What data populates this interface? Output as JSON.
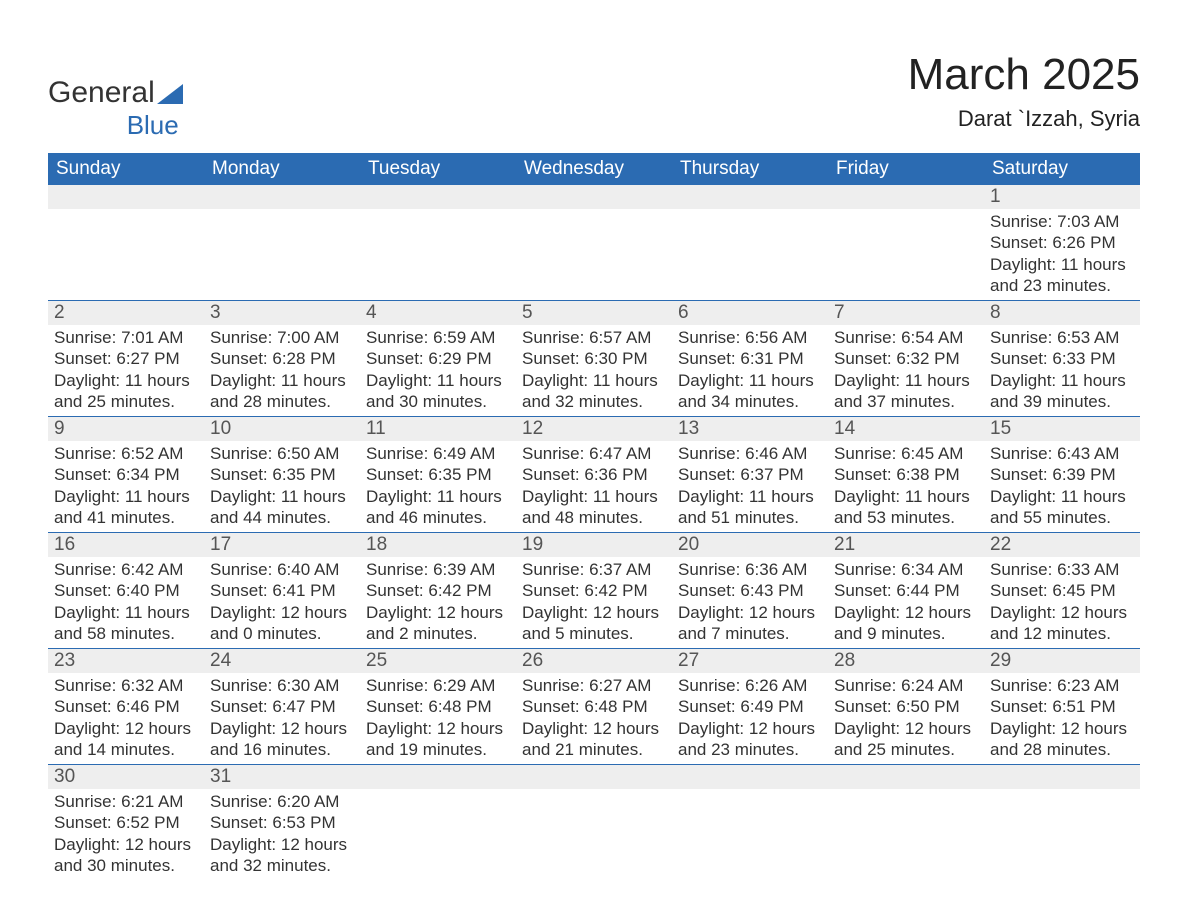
{
  "logo": {
    "word1": "General",
    "word2": "Blue"
  },
  "title": "March 2025",
  "location": "Darat `Izzah, Syria",
  "colors": {
    "header_bg": "#2b6bb2",
    "header_fg": "#ffffff",
    "daynum_bg": "#eeeeee",
    "daynum_fg": "#555555",
    "text": "#333333",
    "rule": "#2b6bb2"
  },
  "day_headers": [
    "Sunday",
    "Monday",
    "Tuesday",
    "Wednesday",
    "Thursday",
    "Friday",
    "Saturday"
  ],
  "weeks": [
    [
      {
        "n": "",
        "lines": [
          "",
          "",
          "",
          ""
        ]
      },
      {
        "n": "",
        "lines": [
          "",
          "",
          "",
          ""
        ]
      },
      {
        "n": "",
        "lines": [
          "",
          "",
          "",
          ""
        ]
      },
      {
        "n": "",
        "lines": [
          "",
          "",
          "",
          ""
        ]
      },
      {
        "n": "",
        "lines": [
          "",
          "",
          "",
          ""
        ]
      },
      {
        "n": "",
        "lines": [
          "",
          "",
          "",
          ""
        ]
      },
      {
        "n": "1",
        "lines": [
          "Sunrise: 7:03 AM",
          "Sunset: 6:26 PM",
          "Daylight: 11 hours",
          "and 23 minutes."
        ]
      }
    ],
    [
      {
        "n": "2",
        "lines": [
          "Sunrise: 7:01 AM",
          "Sunset: 6:27 PM",
          "Daylight: 11 hours",
          "and 25 minutes."
        ]
      },
      {
        "n": "3",
        "lines": [
          "Sunrise: 7:00 AM",
          "Sunset: 6:28 PM",
          "Daylight: 11 hours",
          "and 28 minutes."
        ]
      },
      {
        "n": "4",
        "lines": [
          "Sunrise: 6:59 AM",
          "Sunset: 6:29 PM",
          "Daylight: 11 hours",
          "and 30 minutes."
        ]
      },
      {
        "n": "5",
        "lines": [
          "Sunrise: 6:57 AM",
          "Sunset: 6:30 PM",
          "Daylight: 11 hours",
          "and 32 minutes."
        ]
      },
      {
        "n": "6",
        "lines": [
          "Sunrise: 6:56 AM",
          "Sunset: 6:31 PM",
          "Daylight: 11 hours",
          "and 34 minutes."
        ]
      },
      {
        "n": "7",
        "lines": [
          "Sunrise: 6:54 AM",
          "Sunset: 6:32 PM",
          "Daylight: 11 hours",
          "and 37 minutes."
        ]
      },
      {
        "n": "8",
        "lines": [
          "Sunrise: 6:53 AM",
          "Sunset: 6:33 PM",
          "Daylight: 11 hours",
          "and 39 minutes."
        ]
      }
    ],
    [
      {
        "n": "9",
        "lines": [
          "Sunrise: 6:52 AM",
          "Sunset: 6:34 PM",
          "Daylight: 11 hours",
          "and 41 minutes."
        ]
      },
      {
        "n": "10",
        "lines": [
          "Sunrise: 6:50 AM",
          "Sunset: 6:35 PM",
          "Daylight: 11 hours",
          "and 44 minutes."
        ]
      },
      {
        "n": "11",
        "lines": [
          "Sunrise: 6:49 AM",
          "Sunset: 6:35 PM",
          "Daylight: 11 hours",
          "and 46 minutes."
        ]
      },
      {
        "n": "12",
        "lines": [
          "Sunrise: 6:47 AM",
          "Sunset: 6:36 PM",
          "Daylight: 11 hours",
          "and 48 minutes."
        ]
      },
      {
        "n": "13",
        "lines": [
          "Sunrise: 6:46 AM",
          "Sunset: 6:37 PM",
          "Daylight: 11 hours",
          "and 51 minutes."
        ]
      },
      {
        "n": "14",
        "lines": [
          "Sunrise: 6:45 AM",
          "Sunset: 6:38 PM",
          "Daylight: 11 hours",
          "and 53 minutes."
        ]
      },
      {
        "n": "15",
        "lines": [
          "Sunrise: 6:43 AM",
          "Sunset: 6:39 PM",
          "Daylight: 11 hours",
          "and 55 minutes."
        ]
      }
    ],
    [
      {
        "n": "16",
        "lines": [
          "Sunrise: 6:42 AM",
          "Sunset: 6:40 PM",
          "Daylight: 11 hours",
          "and 58 minutes."
        ]
      },
      {
        "n": "17",
        "lines": [
          "Sunrise: 6:40 AM",
          "Sunset: 6:41 PM",
          "Daylight: 12 hours",
          "and 0 minutes."
        ]
      },
      {
        "n": "18",
        "lines": [
          "Sunrise: 6:39 AM",
          "Sunset: 6:42 PM",
          "Daylight: 12 hours",
          "and 2 minutes."
        ]
      },
      {
        "n": "19",
        "lines": [
          "Sunrise: 6:37 AM",
          "Sunset: 6:42 PM",
          "Daylight: 12 hours",
          "and 5 minutes."
        ]
      },
      {
        "n": "20",
        "lines": [
          "Sunrise: 6:36 AM",
          "Sunset: 6:43 PM",
          "Daylight: 12 hours",
          "and 7 minutes."
        ]
      },
      {
        "n": "21",
        "lines": [
          "Sunrise: 6:34 AM",
          "Sunset: 6:44 PM",
          "Daylight: 12 hours",
          "and 9 minutes."
        ]
      },
      {
        "n": "22",
        "lines": [
          "Sunrise: 6:33 AM",
          "Sunset: 6:45 PM",
          "Daylight: 12 hours",
          "and 12 minutes."
        ]
      }
    ],
    [
      {
        "n": "23",
        "lines": [
          "Sunrise: 6:32 AM",
          "Sunset: 6:46 PM",
          "Daylight: 12 hours",
          "and 14 minutes."
        ]
      },
      {
        "n": "24",
        "lines": [
          "Sunrise: 6:30 AM",
          "Sunset: 6:47 PM",
          "Daylight: 12 hours",
          "and 16 minutes."
        ]
      },
      {
        "n": "25",
        "lines": [
          "Sunrise: 6:29 AM",
          "Sunset: 6:48 PM",
          "Daylight: 12 hours",
          "and 19 minutes."
        ]
      },
      {
        "n": "26",
        "lines": [
          "Sunrise: 6:27 AM",
          "Sunset: 6:48 PM",
          "Daylight: 12 hours",
          "and 21 minutes."
        ]
      },
      {
        "n": "27",
        "lines": [
          "Sunrise: 6:26 AM",
          "Sunset: 6:49 PM",
          "Daylight: 12 hours",
          "and 23 minutes."
        ]
      },
      {
        "n": "28",
        "lines": [
          "Sunrise: 6:24 AM",
          "Sunset: 6:50 PM",
          "Daylight: 12 hours",
          "and 25 minutes."
        ]
      },
      {
        "n": "29",
        "lines": [
          "Sunrise: 6:23 AM",
          "Sunset: 6:51 PM",
          "Daylight: 12 hours",
          "and 28 minutes."
        ]
      }
    ],
    [
      {
        "n": "30",
        "lines": [
          "Sunrise: 6:21 AM",
          "Sunset: 6:52 PM",
          "Daylight: 12 hours",
          "and 30 minutes."
        ]
      },
      {
        "n": "31",
        "lines": [
          "Sunrise: 6:20 AM",
          "Sunset: 6:53 PM",
          "Daylight: 12 hours",
          "and 32 minutes."
        ]
      },
      {
        "n": "",
        "lines": [
          "",
          "",
          "",
          ""
        ]
      },
      {
        "n": "",
        "lines": [
          "",
          "",
          "",
          ""
        ]
      },
      {
        "n": "",
        "lines": [
          "",
          "",
          "",
          ""
        ]
      },
      {
        "n": "",
        "lines": [
          "",
          "",
          "",
          ""
        ]
      },
      {
        "n": "",
        "lines": [
          "",
          "",
          "",
          ""
        ]
      }
    ]
  ]
}
